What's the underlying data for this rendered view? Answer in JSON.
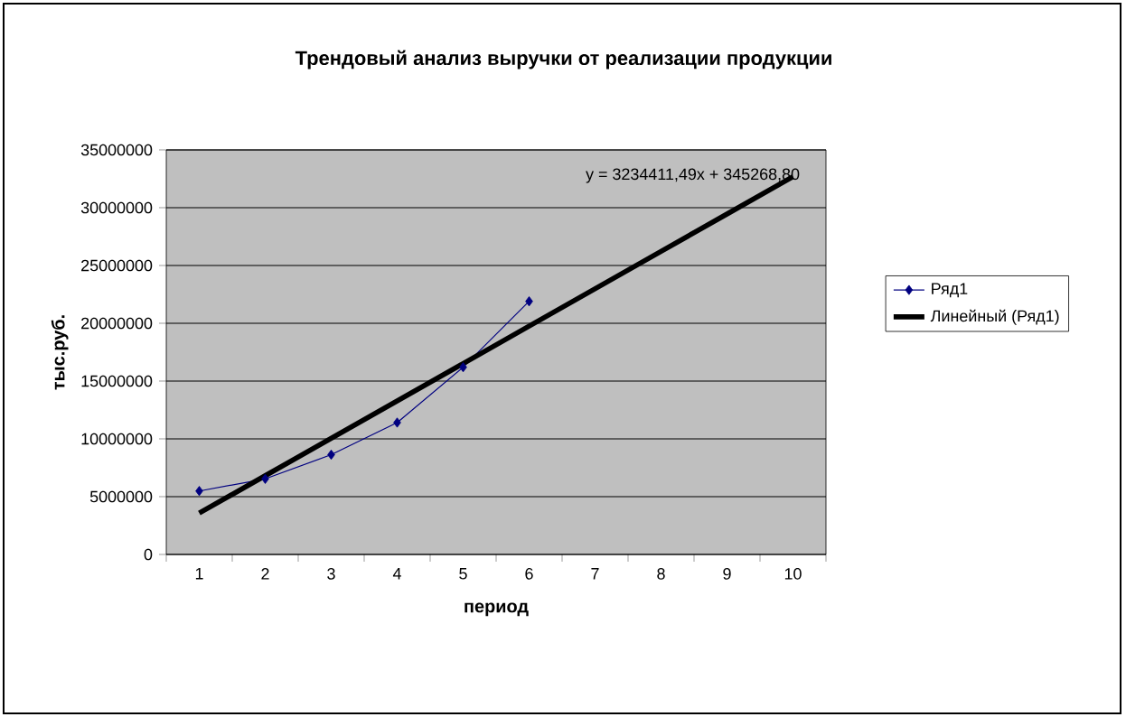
{
  "chart_data": {
    "type": "line",
    "title": "Трендовый анализ выручки от  реализации продукции",
    "xlabel": "период",
    "ylabel": "тыс.руб.",
    "categories": [
      "1",
      "2",
      "3",
      "4",
      "5",
      "6",
      "7",
      "8",
      "9",
      "10"
    ],
    "series": [
      {
        "name": "Ряд1",
        "color": "#000080",
        "marker": "diamond",
        "values": [
          5490000,
          6540000,
          8630000,
          11410000,
          16200000,
          21900000,
          null,
          null,
          null,
          null
        ]
      },
      {
        "name": "Линейный (Ряд1)",
        "color": "#000000",
        "marker": "none",
        "values": [
          3579680,
          6814092,
          10048503,
          13282915,
          16517326,
          19751737,
          22986149,
          26220560,
          29454972,
          32689383
        ]
      }
    ],
    "ylim": [
      0,
      35000000
    ],
    "yticks": [
      0,
      5000000,
      10000000,
      15000000,
      20000000,
      25000000,
      30000000,
      35000000
    ],
    "grid": "y",
    "legend": "right",
    "annotations": [
      "y = 3234411,49x + 345268,80"
    ]
  }
}
